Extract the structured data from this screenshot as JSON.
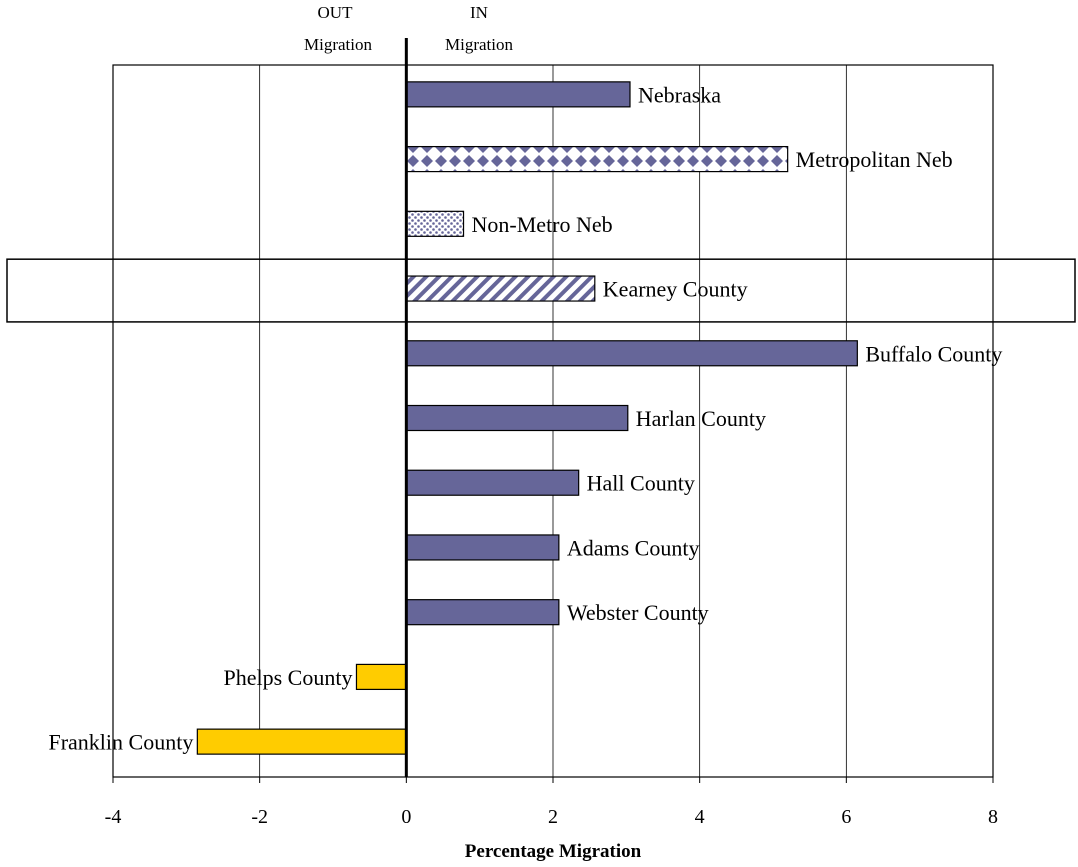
{
  "chart_data": {
    "type": "bar",
    "orientation": "horizontal",
    "title": "",
    "xlabel": "Percentage Migration",
    "ylabel": "",
    "xlim": [
      -4,
      8
    ],
    "x_ticks": [
      -4,
      -2,
      0,
      2,
      4,
      6,
      8
    ],
    "grid": "vertical",
    "legend": "none",
    "header_labels": {
      "out_line1": "OUT",
      "out_line2": "Migration",
      "in_line1": "IN",
      "in_line2": "Migration"
    },
    "highlighted_category": "Kearney County",
    "categories": [
      "Nebraska",
      "Metropolitan Neb",
      "Non-Metro Neb",
      "Kearney County",
      "Buffalo County",
      "Harlan County",
      "Hall County",
      "Adams County",
      "Webster County",
      "Phelps County",
      "Franklin County"
    ],
    "values": [
      3.05,
      5.2,
      0.78,
      2.57,
      6.15,
      3.02,
      2.35,
      2.08,
      2.08,
      -0.68,
      -2.85
    ],
    "fills": [
      "solid",
      "diamonds",
      "dots",
      "diagonal",
      "solid",
      "solid",
      "solid",
      "solid",
      "solid",
      "solid",
      "solid"
    ],
    "colors": {
      "positive": "#666699",
      "negative": "#FFCC00",
      "pattern_bg": "#ffffff"
    }
  }
}
